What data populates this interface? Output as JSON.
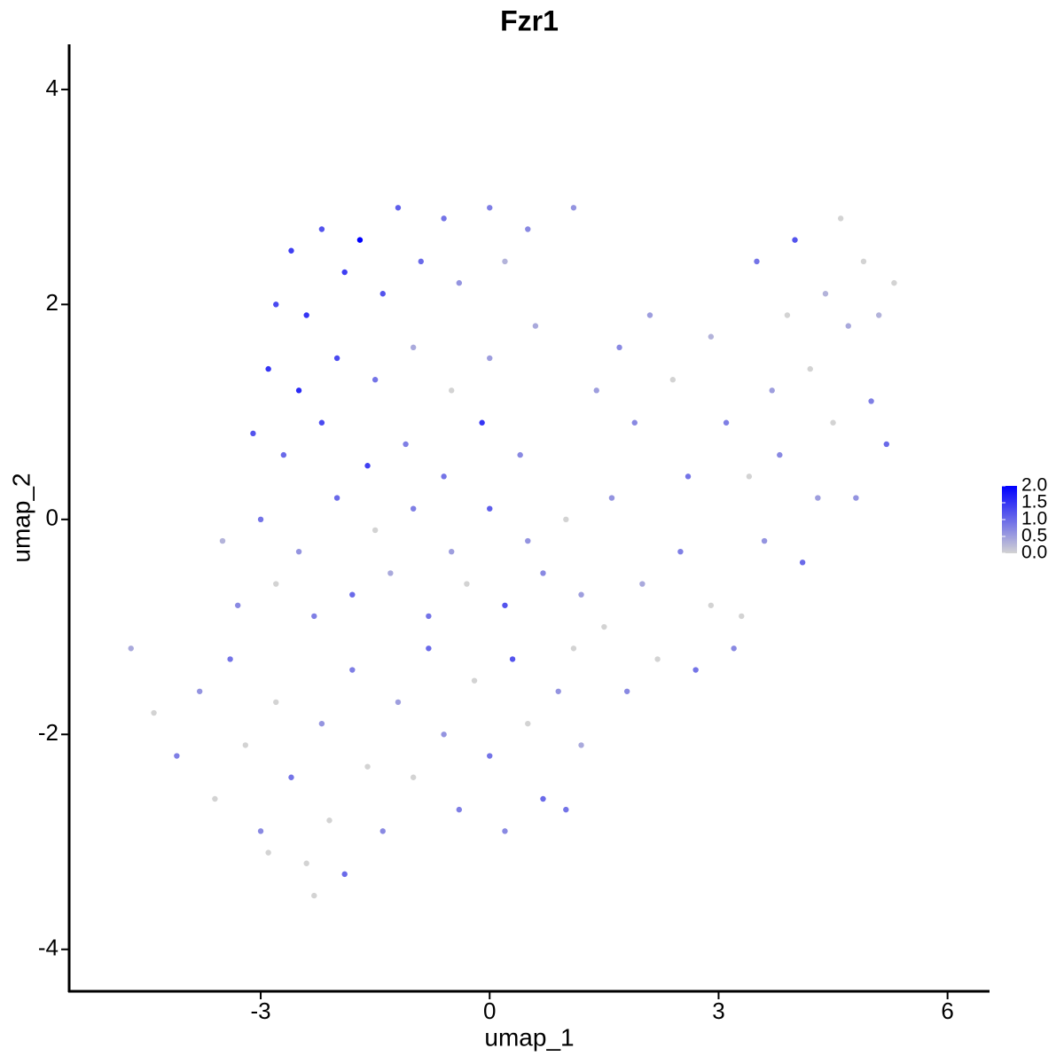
{
  "chart_data": {
    "type": "scatter",
    "title": "Fzr1",
    "x_label": "umap_1",
    "y_label": "umap_2",
    "xlim": [
      -5.51,
      6.55
    ],
    "ylim": [
      -4.39,
      4.42
    ],
    "xticks": [
      -3,
      0,
      3,
      6
    ],
    "yticks": [
      -4,
      -2,
      0,
      2,
      4
    ],
    "low_color": "#d3d3d3",
    "high_color": "#0000ff",
    "colorlim": [
      0,
      2.0
    ],
    "colorticks": [
      {
        "value": 0,
        "label": "0.0"
      },
      {
        "value": 0.5,
        "label": "0.5"
      },
      {
        "value": 1,
        "label": "1.0"
      },
      {
        "value": 1.5,
        "label": "1.5"
      },
      {
        "value": 2,
        "label": "2.0"
      }
    ],
    "x": [
      -2.6,
      -2.2,
      -1.7,
      -1.2,
      -0.6,
      0,
      0.5,
      1.1,
      -2.8,
      -2.4,
      -1.9,
      -1.4,
      -0.9,
      -0.4,
      0.2,
      -2.9,
      -2.5,
      -2.0,
      -1.5,
      -1.0,
      -0.5,
      0.0,
      0.6,
      -3.1,
      -2.7,
      -2.2,
      -1.6,
      -1.1,
      -0.6,
      -0.1,
      0.4,
      -3.5,
      -3.0,
      -2.5,
      -2.0,
      -1.5,
      -1.0,
      -0.5,
      0.0,
      0.5,
      1.0,
      -3.3,
      -2.8,
      -2.3,
      -1.8,
      -1.3,
      -0.8,
      -0.3,
      0.2,
      0.7,
      1.2,
      -4.7,
      -4.4,
      -4.1,
      -3.8,
      -3.6,
      -3.4,
      -3.2,
      -3.0,
      -2.8,
      -2.6,
      -2.4,
      -2.2,
      -2.1,
      -2.3,
      -1.9,
      -1.8,
      -1.6,
      -1.4,
      -1.2,
      -1.0,
      -0.8,
      -0.6,
      -0.4,
      -0.2,
      0.0,
      0.2,
      0.3,
      0.5,
      0.7,
      0.9,
      1.0,
      1.2,
      1.1,
      -2.9,
      1.5,
      1.8,
      2.0,
      2.2,
      2.5,
      2.7,
      1.6,
      1.9,
      1.4,
      2.1,
      2.4,
      2.6,
      2.9,
      3.1,
      3.3,
      3.6,
      3.4,
      3.7,
      3.5,
      3.9,
      3.8,
      4.1,
      4.3,
      4.2,
      4.4,
      4.6,
      4.5,
      4.7,
      4.8,
      4.9,
      5.0,
      5.1,
      5.2,
      5.3,
      4.0,
      3.2,
      2.9,
      1.7
    ],
    "values": [
      2.5,
      2.7,
      2.6,
      2.9,
      2.8,
      2.9,
      2.7,
      2.9,
      2.0,
      1.9,
      2.3,
      2.1,
      2.4,
      2.2,
      2.4,
      1.4,
      1.2,
      1.5,
      1.3,
      1.6,
      1.2,
      1.5,
      1.8,
      0.8,
      0.6,
      0.9,
      0.5,
      0.7,
      0.4,
      0.9,
      0.6,
      -0.2,
      0.0,
      -0.3,
      0.2,
      -0.1,
      0.1,
      -0.3,
      0.1,
      -0.2,
      0.0,
      -0.8,
      -0.6,
      -0.9,
      -0.7,
      -0.5,
      -0.9,
      -0.6,
      -0.8,
      -0.5,
      -0.7,
      -1.2,
      -1.8,
      -2.2,
      -1.6,
      -2.6,
      -1.3,
      -2.1,
      -2.9,
      -1.7,
      -2.4,
      -3.2,
      -1.9,
      -2.8,
      -3.5,
      -3.3,
      -1.4,
      -2.3,
      -2.9,
      -1.7,
      -2.4,
      -1.2,
      -2.0,
      -2.7,
      -1.5,
      -2.2,
      -2.9,
      -1.3,
      -1.9,
      -2.6,
      -1.6,
      -2.7,
      -2.1,
      -1.2,
      -3.1,
      -1.0,
      -1.6,
      -0.6,
      -1.3,
      -0.3,
      -1.4,
      0.2,
      0.9,
      1.2,
      1.9,
      1.3,
      0.4,
      1.7,
      0.9,
      -0.9,
      -0.2,
      0.4,
      1.2,
      2.4,
      1.9,
      0.6,
      -0.4,
      0.2,
      1.4,
      2.1,
      2.8,
      0.9,
      1.8,
      0.2,
      2.4,
      1.1,
      1.9,
      0.7,
      2.2,
      2.6,
      -1.2,
      -0.8,
      1.6
    ],
    "expression": [
      1.4,
      1.2,
      2.0,
      1.1,
      0.9,
      0.8,
      0.7,
      0.6,
      1.3,
      1.5,
      1.4,
      1.2,
      1.0,
      0.6,
      0.3,
      1.5,
      1.6,
      1.3,
      0.9,
      0.4,
      0.0,
      0.5,
      0.4,
      1.2,
      1.0,
      1.3,
      1.4,
      0.8,
      0.9,
      1.5,
      0.7,
      0.3,
      0.9,
      0.6,
      1.0,
      0.0,
      0.8,
      0.5,
      1.1,
      0.6,
      0.0,
      0.7,
      0.0,
      0.8,
      1.0,
      0.4,
      0.9,
      0.0,
      1.2,
      0.7,
      0.5,
      0.4,
      0.0,
      0.8,
      0.6,
      0.0,
      0.9,
      0.0,
      0.7,
      0.0,
      0.9,
      0.0,
      0.6,
      0.0,
      0.0,
      1.0,
      0.8,
      0.0,
      0.7,
      0.5,
      0.0,
      1.0,
      0.6,
      0.8,
      0.0,
      0.9,
      0.7,
      1.2,
      0.0,
      1.0,
      0.6,
      0.9,
      0.4,
      0.0,
      0.0,
      0.0,
      0.7,
      0.4,
      0.0,
      0.8,
      0.9,
      0.6,
      0.7,
      0.5,
      0.5,
      0.0,
      0.9,
      0.3,
      0.8,
      0.0,
      0.6,
      0.0,
      0.5,
      0.9,
      0.0,
      0.7,
      1.0,
      0.5,
      0.0,
      0.3,
      0.0,
      0.0,
      0.4,
      0.6,
      0.0,
      0.8,
      0.3,
      1.0,
      0.0,
      1.2,
      0.7,
      0.0,
      0.7
    ]
  }
}
